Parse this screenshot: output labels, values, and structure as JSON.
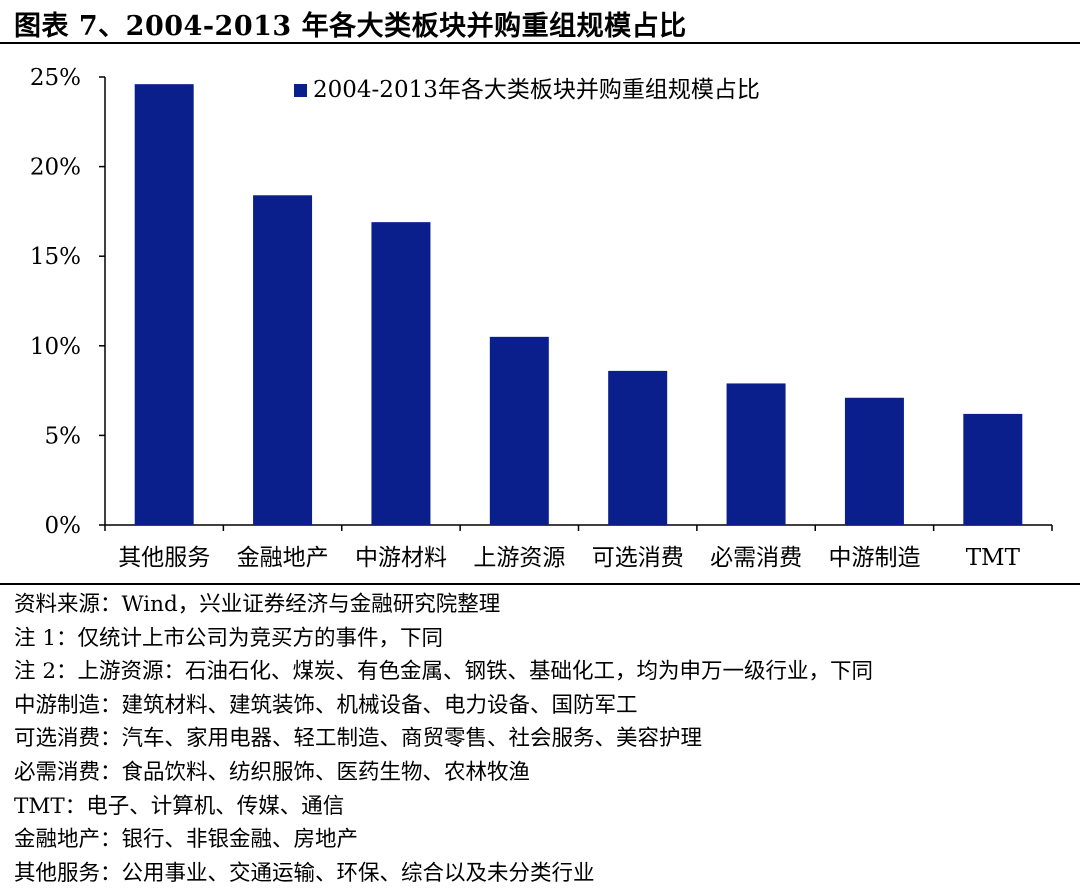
{
  "figure": {
    "title": "图表 7、2004-2013 年各大类板块并购重组规模占比"
  },
  "chart_data": {
    "type": "bar",
    "title": "",
    "xlabel": "",
    "ylabel": "",
    "categories": [
      "其他服务",
      "金融地产",
      "中游材料",
      "上游资源",
      "可选消费",
      "必需消费",
      "中游制造",
      "TMT"
    ],
    "series": [
      {
        "name": "2004-2013年各大类板块并购重组规模占比",
        "values": [
          24.6,
          18.4,
          16.9,
          10.5,
          8.6,
          7.9,
          7.1,
          6.2
        ]
      }
    ],
    "unit": "%",
    "ylim": [
      0,
      25
    ],
    "yticks": [
      0,
      5,
      10,
      15,
      20,
      25
    ],
    "ytick_labels": [
      "0%",
      "5%",
      "10%",
      "15%",
      "20%",
      "25%"
    ],
    "grid": false,
    "legend_position": "top-center",
    "bar_color": "#0b1f8c"
  },
  "notes": [
    "资料来源：Wind，兴业证券经济与金融研究院整理",
    "注 1：仅统计上市公司为竞买方的事件，下同",
    "注 2：上游资源：石油石化、煤炭、有色金属、钢铁、基础化工，均为申万一级行业，下同",
    "中游制造：建筑材料、建筑装饰、机械设备、电力设备、国防军工",
    "可选消费：汽车、家用电器、轻工制造、商贸零售、社会服务、美容护理",
    "必需消费：食品饮料、纺织服饰、医药生物、农林牧渔",
    "TMT：电子、计算机、传媒、通信",
    "金融地产：银行、非银金融、房地产",
    "其他服务：公用事业、交通运输、环保、综合以及未分类行业"
  ]
}
